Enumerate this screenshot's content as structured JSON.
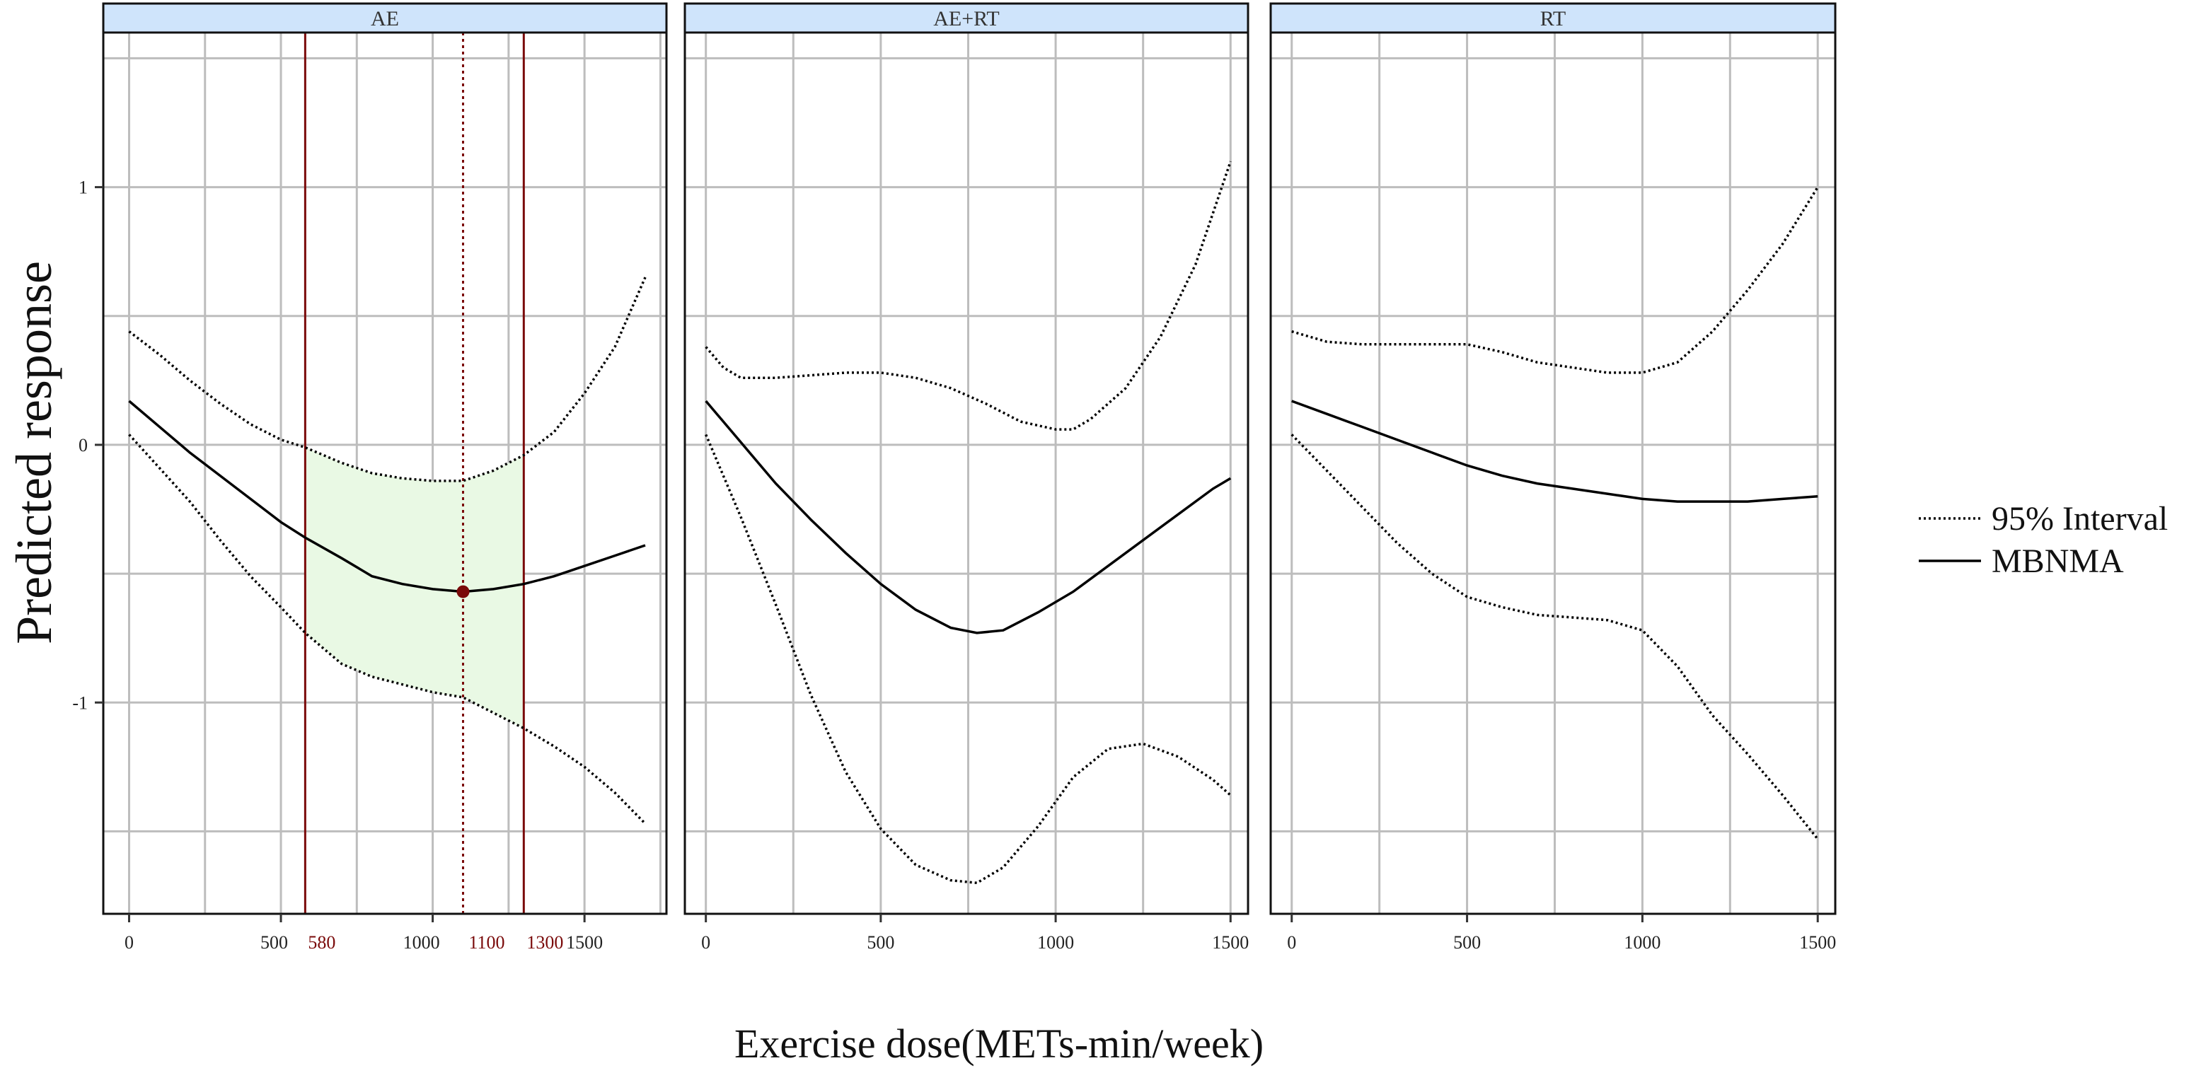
{
  "chart_data": {
    "type": "line",
    "xlabel": "Exercise dose(METs-min/week)",
    "ylabel": "Predicted response",
    "ylim": [
      -1.82,
      1.6
    ],
    "y_ticks": [
      -1,
      0,
      1
    ],
    "legend": {
      "placement": "right",
      "entries": [
        {
          "label": "95% Interval",
          "style": "dotted"
        },
        {
          "label": "MBNMA",
          "style": "solid"
        }
      ]
    },
    "colors": {
      "strip": "#cfe4fb",
      "highlight": "#7a0a0a",
      "band": "#e9f9e4",
      "grid": "#bdbdbd"
    },
    "panels": [
      {
        "title": "AE",
        "xlim": [
          -85,
          1770
        ],
        "x_ticks": [
          0,
          500,
          1000,
          1500
        ],
        "x_tick_labels": [
          "0",
          "500",
          "1000",
          "1500"
        ],
        "series": [
          {
            "name": "MBNMA",
            "style": "solid",
            "x": [
              0,
              100,
              200,
              300,
              400,
              500,
              580,
              700,
              800,
              900,
              1000,
              1100,
              1200,
              1300,
              1400,
              1500,
              1600,
              1700
            ],
            "y": [
              0.17,
              0.07,
              -0.03,
              -0.12,
              -0.21,
              -0.3,
              -0.36,
              -0.44,
              -0.51,
              -0.54,
              -0.56,
              -0.57,
              -0.56,
              -0.54,
              -0.51,
              -0.47,
              -0.43,
              -0.39
            ]
          },
          {
            "name": "Upper 95%",
            "style": "dotted",
            "x": [
              0,
              100,
              200,
              300,
              400,
              500,
              580,
              700,
              800,
              900,
              1000,
              1100,
              1200,
              1300,
              1400,
              1500,
              1600,
              1700
            ],
            "y": [
              0.44,
              0.35,
              0.25,
              0.16,
              0.08,
              0.02,
              -0.01,
              -0.07,
              -0.11,
              -0.13,
              -0.14,
              -0.14,
              -0.1,
              -0.04,
              0.05,
              0.2,
              0.38,
              0.65
            ]
          },
          {
            "name": "Lower 95%",
            "style": "dotted",
            "x": [
              0,
              100,
              200,
              300,
              400,
              500,
              580,
              700,
              800,
              900,
              1000,
              1100,
              1200,
              1300,
              1400,
              1500,
              1600,
              1700
            ],
            "y": [
              0.04,
              -0.09,
              -0.22,
              -0.37,
              -0.51,
              -0.63,
              -0.73,
              -0.85,
              -0.9,
              -0.93,
              -0.96,
              -0.98,
              -1.04,
              -1.1,
              -1.17,
              -1.25,
              -1.35,
              -1.47
            ]
          }
        ],
        "highlight": {
          "band_x": [
            580,
            1300
          ],
          "point": {
            "x": 1100,
            "y": -0.57
          },
          "labels": [
            "580",
            "1100",
            "1300"
          ]
        }
      },
      {
        "title": "AE+RT",
        "xlim": [
          -60,
          1550
        ],
        "x_ticks": [
          0,
          500,
          1000,
          1500
        ],
        "x_tick_labels": [
          "0",
          "500",
          "1000",
          "1500"
        ],
        "series": [
          {
            "name": "MBNMA",
            "style": "solid",
            "x": [
              0,
              100,
              200,
              300,
              400,
              500,
              600,
              700,
              775,
              850,
              950,
              1050,
              1150,
              1250,
              1350,
              1450,
              1500
            ],
            "y": [
              0.17,
              0.01,
              -0.15,
              -0.29,
              -0.42,
              -0.54,
              -0.64,
              -0.71,
              -0.73,
              -0.72,
              -0.65,
              -0.57,
              -0.47,
              -0.37,
              -0.27,
              -0.17,
              -0.13
            ]
          },
          {
            "name": "Upper 95%",
            "style": "dotted",
            "x": [
              0,
              50,
              100,
              200,
              300,
              400,
              500,
              600,
              700,
              800,
              900,
              1000,
              1050,
              1100,
              1200,
              1300,
              1400,
              1500
            ],
            "y": [
              0.38,
              0.3,
              0.26,
              0.26,
              0.27,
              0.28,
              0.28,
              0.26,
              0.22,
              0.16,
              0.09,
              0.06,
              0.06,
              0.1,
              0.22,
              0.42,
              0.7,
              1.1
            ]
          },
          {
            "name": "Lower 95%",
            "style": "dotted",
            "x": [
              0,
              100,
              200,
              300,
              400,
              500,
              600,
              700,
              775,
              850,
              950,
              1050,
              1150,
              1250,
              1350,
              1450,
              1500
            ],
            "y": [
              0.04,
              -0.28,
              -0.62,
              -0.97,
              -1.27,
              -1.49,
              -1.63,
              -1.69,
              -1.7,
              -1.64,
              -1.48,
              -1.29,
              -1.18,
              -1.16,
              -1.21,
              -1.3,
              -1.36
            ]
          }
        ]
      },
      {
        "title": "RT",
        "xlim": [
          -60,
          1550
        ],
        "x_ticks": [
          0,
          500,
          1000,
          1500
        ],
        "x_tick_labels": [
          "0",
          "500",
          "1000",
          "1500"
        ],
        "series": [
          {
            "name": "MBNMA",
            "style": "solid",
            "x": [
              0,
              100,
              200,
              300,
              400,
              500,
              600,
              700,
              800,
              900,
              1000,
              1100,
              1200,
              1300,
              1400,
              1500
            ],
            "y": [
              0.17,
              0.12,
              0.07,
              0.02,
              -0.03,
              -0.08,
              -0.12,
              -0.15,
              -0.17,
              -0.19,
              -0.21,
              -0.22,
              -0.22,
              -0.22,
              -0.21,
              -0.2
            ]
          },
          {
            "name": "Upper 95%",
            "style": "dotted",
            "x": [
              0,
              100,
              200,
              300,
              400,
              500,
              600,
              700,
              800,
              900,
              1000,
              1100,
              1200,
              1300,
              1400,
              1500
            ],
            "y": [
              0.44,
              0.4,
              0.39,
              0.39,
              0.39,
              0.39,
              0.36,
              0.32,
              0.3,
              0.28,
              0.28,
              0.32,
              0.44,
              0.6,
              0.78,
              1.0
            ]
          },
          {
            "name": "Lower 95%",
            "style": "dotted",
            "x": [
              0,
              100,
              200,
              300,
              400,
              500,
              600,
              700,
              800,
              900,
              1000,
              1100,
              1200,
              1300,
              1400,
              1500
            ],
            "y": [
              0.04,
              -0.1,
              -0.24,
              -0.38,
              -0.5,
              -0.59,
              -0.63,
              -0.66,
              -0.67,
              -0.68,
              -0.72,
              -0.86,
              -1.05,
              -1.2,
              -1.36,
              -1.53
            ]
          }
        ]
      }
    ]
  }
}
